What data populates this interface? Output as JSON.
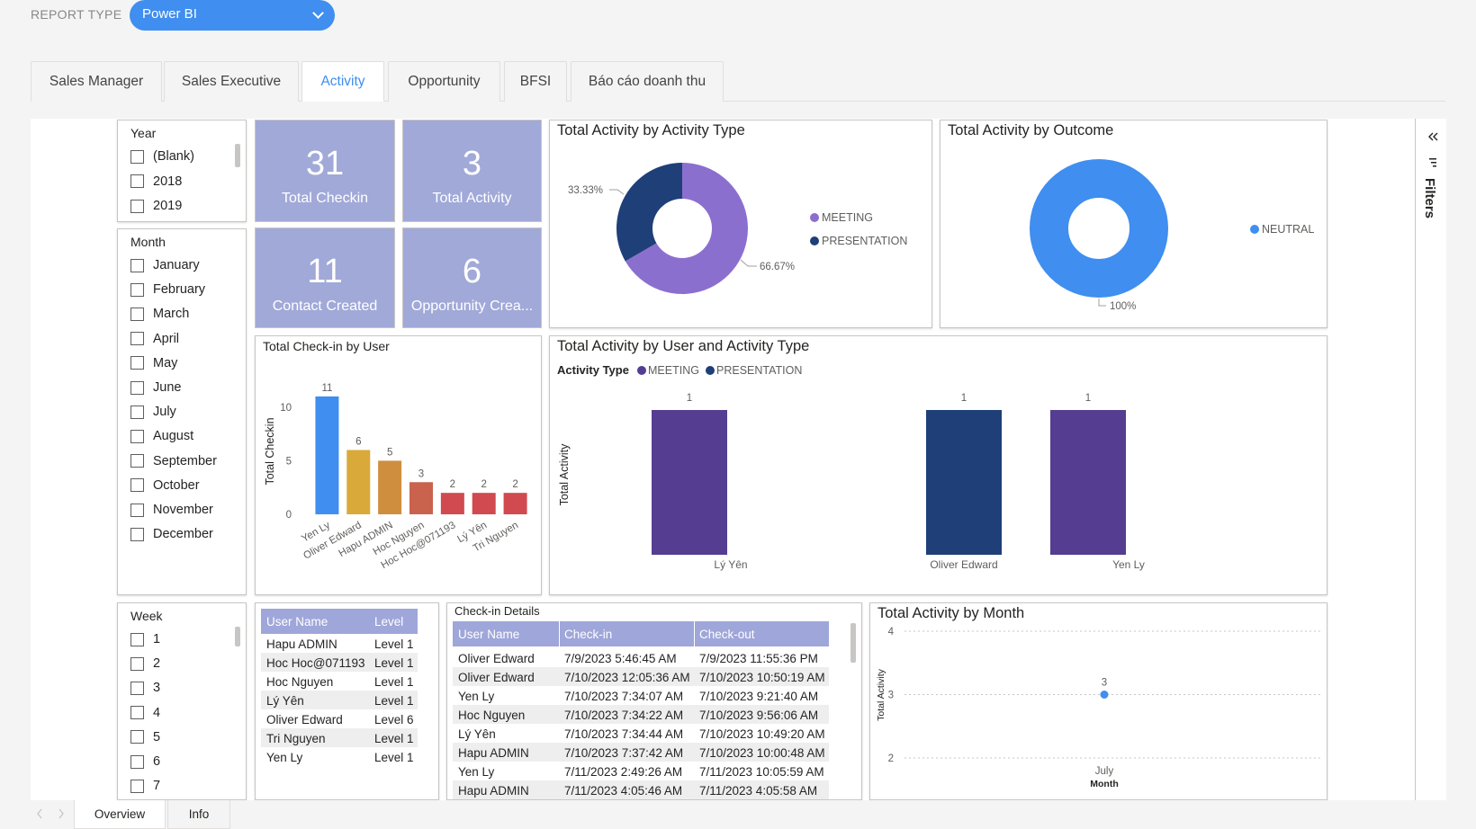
{
  "report_type": {
    "label": "REPORT TYPE",
    "value": "Power BI"
  },
  "tabs": [
    {
      "label": "Sales Manager",
      "active": false
    },
    {
      "label": "Sales Executive",
      "active": false
    },
    {
      "label": "Activity",
      "active": true
    },
    {
      "label": "Opportunity",
      "active": false
    },
    {
      "label": "BFSI",
      "active": false
    },
    {
      "label": "Báo cáo doanh thu",
      "active": false
    }
  ],
  "slicers": {
    "year": {
      "title": "Year",
      "items": [
        "(Blank)",
        "2018",
        "2019"
      ]
    },
    "month": {
      "title": "Month",
      "items": [
        "January",
        "February",
        "March",
        "April",
        "May",
        "June",
        "July",
        "August",
        "September",
        "October",
        "November",
        "December"
      ]
    },
    "week": {
      "title": "Week",
      "items": [
        "1",
        "2",
        "3",
        "4",
        "5",
        "6",
        "7"
      ]
    }
  },
  "cards": [
    {
      "value": "31",
      "label": "Total Checkin"
    },
    {
      "value": "3",
      "label": "Total Activity"
    },
    {
      "value": "11",
      "label": "Contact Created"
    },
    {
      "value": "6",
      "label": "Opportunity Crea..."
    }
  ],
  "colors": {
    "accent": "#3f8ef0",
    "meeting": "#8b6fcf",
    "presentation": "#1e3f78",
    "neutral": "#3f8ef0",
    "card": "#a1a9d8",
    "bar_meeting": "#553d91",
    "bar_presentation": "#1e3f78"
  },
  "chart_data": [
    {
      "id": "activity_type",
      "type": "pie",
      "title": "Total Activity by Activity Type",
      "categories": [
        "MEETING",
        "PRESENTATION"
      ],
      "values": [
        66.67,
        33.33
      ],
      "data_labels": [
        "66.67%",
        "33.33%"
      ],
      "legend": "right"
    },
    {
      "id": "outcome",
      "type": "pie",
      "title": "Total Activity by Outcome",
      "categories": [
        "NEUTRAL"
      ],
      "values": [
        100
      ],
      "data_labels": [
        "100%"
      ],
      "legend": "right"
    },
    {
      "id": "checkin_user",
      "type": "bar",
      "title": "Total Check-in by User",
      "ylabel": "Total Checkin",
      "categories": [
        "Yen Ly",
        "Oliver Edward",
        "Hapu ADMIN",
        "Hoc Nguyen",
        "Hoc Hoc@071193",
        "Lý Yên",
        "Tri Nguyen"
      ],
      "values": [
        11,
        6,
        5,
        3,
        2,
        2,
        2
      ],
      "yticks": [
        "0",
        "5",
        "10"
      ],
      "ylim": [
        0,
        12
      ],
      "bar_colors": [
        "#3f8ef0",
        "#d9aa3a",
        "#cf8e3e",
        "#c9634d",
        "#d04a4f",
        "#d04a4f",
        "#d04a4f"
      ]
    },
    {
      "id": "user_activity_type",
      "type": "bar",
      "title": "Total Activity by User and Activity Type",
      "legend_title": "Activity Type",
      "ylabel": "Total Activity",
      "categories": [
        "Lý Yên",
        "Oliver Edward",
        "Yen Ly"
      ],
      "series": [
        {
          "name": "MEETING",
          "values": [
            1,
            0,
            1
          ]
        },
        {
          "name": "PRESENTATION",
          "values": [
            0,
            1,
            0
          ]
        }
      ],
      "ylim": [
        0,
        1
      ]
    },
    {
      "id": "activity_month",
      "type": "line",
      "title": "Total Activity by Month",
      "xlabel": "Month",
      "ylabel": "Total Activity",
      "x": [
        "July"
      ],
      "values": [
        3
      ],
      "yticks": [
        "2",
        "3",
        "4"
      ],
      "ylim": [
        2,
        4
      ]
    }
  ],
  "user_level_table": {
    "headers": [
      "User Name",
      "Level"
    ],
    "rows": [
      [
        "Hapu ADMIN",
        "Level 1"
      ],
      [
        "Hoc Hoc@071193",
        "Level 1"
      ],
      [
        "Hoc Nguyen",
        "Level 1"
      ],
      [
        "Lý Yên",
        "Level 1"
      ],
      [
        "Oliver Edward",
        "Level 6"
      ],
      [
        "Tri Nguyen",
        "Level 1"
      ],
      [
        "Yen Ly",
        "Level 1"
      ]
    ]
  },
  "checkin_table": {
    "title": "Check-in Details",
    "headers": [
      "User Name",
      "Check-in",
      "Check-out"
    ],
    "rows": [
      [
        "Oliver Edward",
        "7/9/2023 5:46:45 AM",
        "7/9/2023 11:55:36 PM"
      ],
      [
        "Oliver Edward",
        "7/10/2023 12:05:36 AM",
        "7/10/2023 10:50:19 AM"
      ],
      [
        "Yen Ly",
        "7/10/2023 7:34:07 AM",
        "7/10/2023 9:21:40 AM"
      ],
      [
        "Hoc Nguyen",
        "7/10/2023 7:34:22 AM",
        "7/10/2023 9:56:06 AM"
      ],
      [
        "Lý Yên",
        "7/10/2023 7:34:44 AM",
        "7/10/2023 10:49:20 AM"
      ],
      [
        "Hapu ADMIN",
        "7/10/2023 7:37:42 AM",
        "7/10/2023 10:00:48 AM"
      ],
      [
        "Yen Ly",
        "7/11/2023 2:49:26 AM",
        "7/11/2023 10:05:59 AM"
      ],
      [
        "Hapu ADMIN",
        "7/11/2023 4:05:46 AM",
        "7/11/2023 4:05:58 AM"
      ]
    ]
  },
  "filters_pane": {
    "label": "Filters"
  },
  "page_tabs": [
    {
      "label": "Overview",
      "active": true
    },
    {
      "label": "Info",
      "active": false
    }
  ]
}
